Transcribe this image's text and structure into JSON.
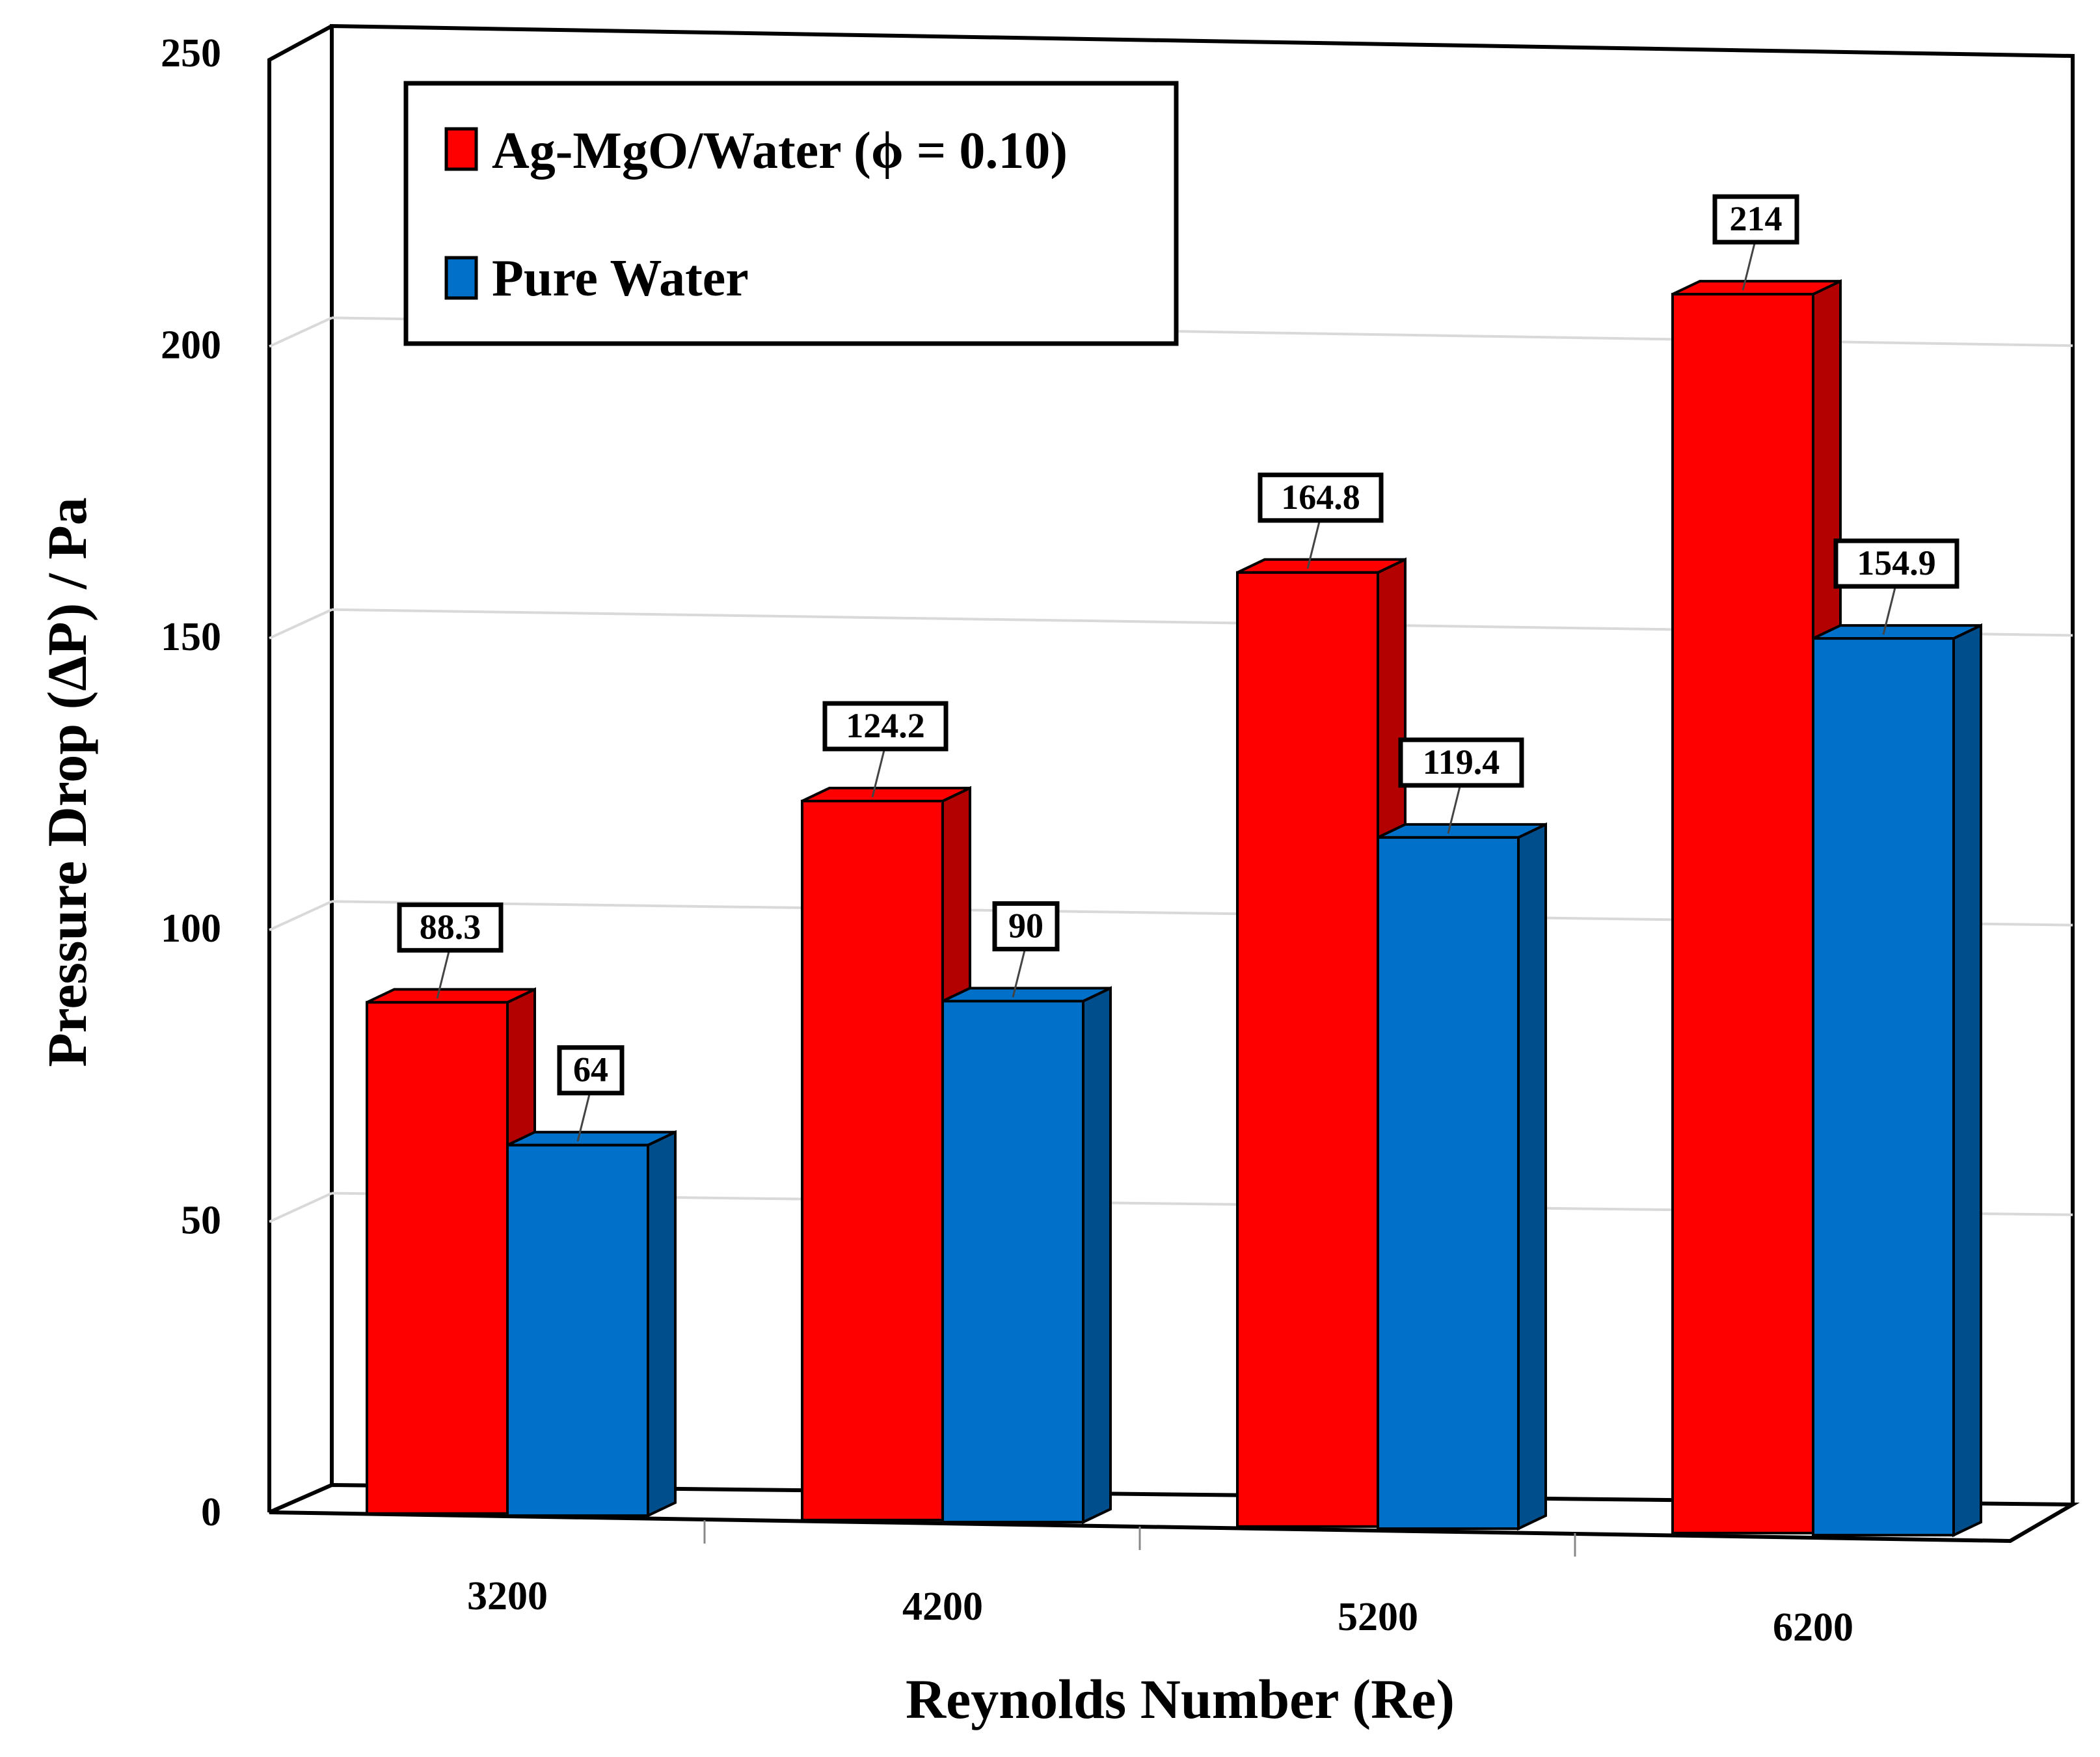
{
  "chart_data": {
    "type": "bar",
    "title": "",
    "xlabel": "Reynolds Number (Re)",
    "ylabel": "Pressure Drop (ΔP) / Pa",
    "categories": [
      "3200",
      "4200",
      "5200",
      "6200"
    ],
    "ylim": [
      0,
      250
    ],
    "yticks": [
      "0",
      "50",
      "100",
      "150",
      "200",
      "250"
    ],
    "grid": true,
    "legend_position": "top-left",
    "series": [
      {
        "name": "Ag-MgO/Water (ϕ = 0.10)",
        "color": "#FF0000",
        "side_color": "#B30000",
        "values": [
          88.3,
          124.2,
          164.8,
          214
        ],
        "labels": [
          "88.3",
          "124.2",
          "164.8",
          "214"
        ]
      },
      {
        "name": "Pure Water",
        "color": "#0070C8",
        "side_color": "#004F8C",
        "values": [
          64,
          90,
          119.4,
          154.9
        ],
        "labels": [
          "64",
          "90",
          "119.4",
          "154.9"
        ]
      }
    ]
  }
}
